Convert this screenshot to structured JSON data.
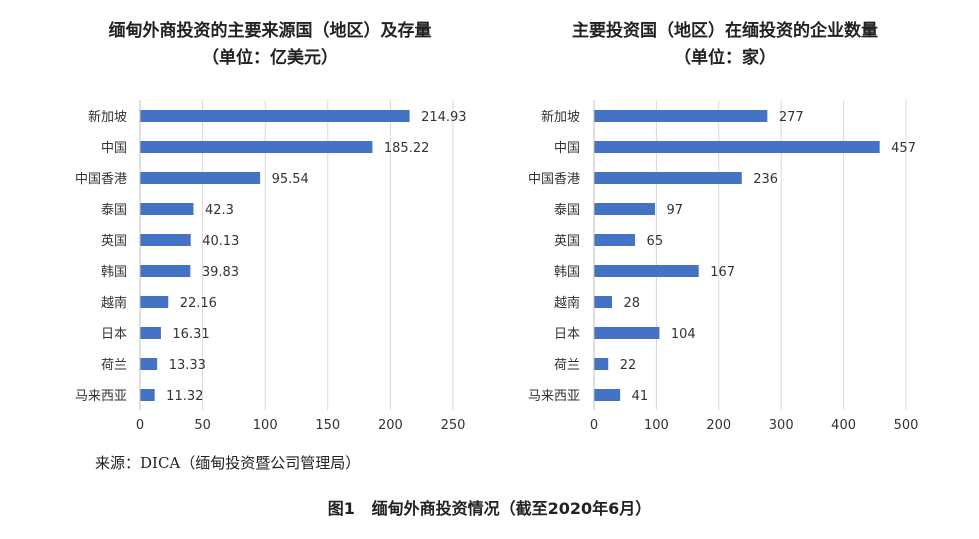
{
  "chart_data": [
    {
      "type": "bar",
      "orientation": "horizontal",
      "title": "缅甸外商投资的主要来源国（地区）及存量",
      "subtitle": "（单位：亿美元）",
      "categories": [
        "新加坡",
        "中国",
        "中国香港",
        "泰国",
        "英国",
        "韩国",
        "越南",
        "日本",
        "荷兰",
        "马来西亚"
      ],
      "values": [
        214.93,
        185.22,
        95.54,
        42.3,
        40.13,
        39.83,
        22.16,
        16.31,
        13.33,
        11.32
      ],
      "data_labels": [
        "214.93",
        "185.22",
        "95.54",
        "42.3",
        "40.13",
        "39.83",
        "22.16",
        "16.31",
        "13.33",
        "11.32"
      ],
      "xlim": [
        0,
        250
      ],
      "ticks": [
        0,
        50,
        100,
        150,
        200,
        250
      ],
      "grid": true,
      "bar_color": "#4472C4"
    },
    {
      "type": "bar",
      "orientation": "horizontal",
      "title": "主要投资国（地区）在缅投资的企业数量",
      "subtitle": "（单位：家）",
      "categories": [
        "新加坡",
        "中国",
        "中国香港",
        "泰国",
        "英国",
        "韩国",
        "越南",
        "日本",
        "荷兰",
        "马来西亚"
      ],
      "values": [
        277,
        457,
        236,
        97,
        65,
        167,
        28,
        104,
        22,
        41
      ],
      "data_labels": [
        "277",
        "457",
        "236",
        "97",
        "65",
        "167",
        "28",
        "104",
        "22",
        "41"
      ],
      "xlim": [
        0,
        500
      ],
      "ticks": [
        0,
        100,
        200,
        300,
        400,
        500
      ],
      "grid": true,
      "bar_color": "#4472C4"
    }
  ],
  "source": "来源：DICA（缅甸投资暨公司管理局）",
  "caption": {
    "number": "图1",
    "text": "缅甸外商投资情况（截至2020年6月）"
  }
}
